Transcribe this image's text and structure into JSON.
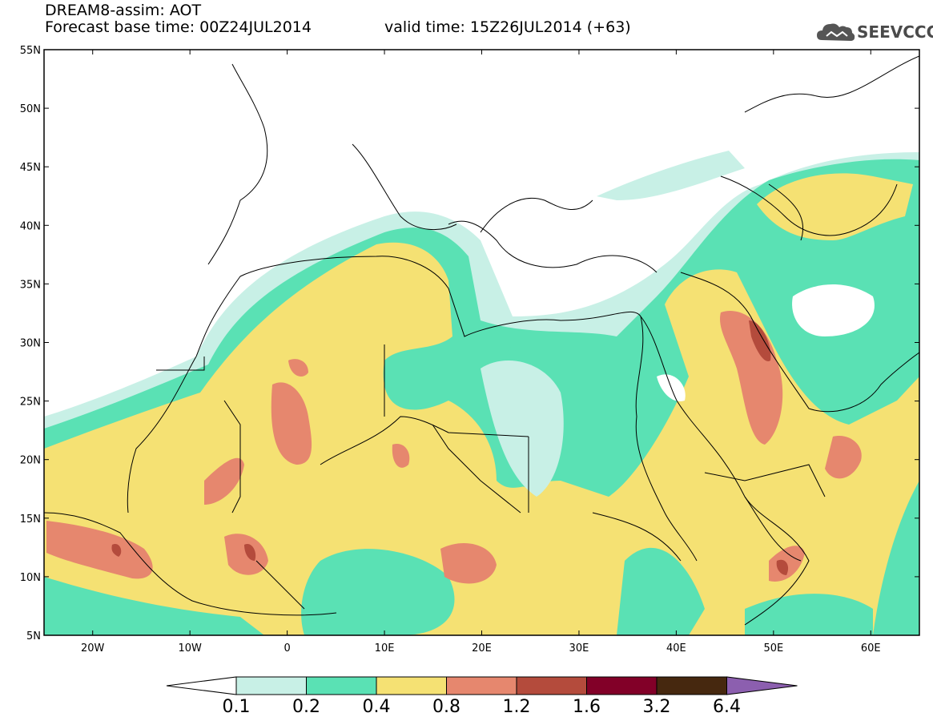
{
  "header": {
    "title": "DREAM8-assim: AOT",
    "forecast": "Forecast base time: 00Z24JUL2014",
    "valid": "valid time: 15Z26JUL2014 (+63)",
    "logo_text": "SEEVCCC"
  },
  "map": {
    "lat_labels": [
      "55N",
      "50N",
      "45N",
      "40N",
      "35N",
      "30N",
      "25N",
      "20N",
      "15N",
      "10N",
      "5N"
    ],
    "lon_labels": [
      "20W",
      "10W",
      "0",
      "10E",
      "20E",
      "30E",
      "40E",
      "50E",
      "60E"
    ],
    "lon_range": [
      -25,
      65
    ],
    "lat_range": [
      5,
      55
    ]
  },
  "colorbar": {
    "levels": [
      "0.1",
      "0.2",
      "0.4",
      "0.8",
      "1.2",
      "1.6",
      "3.2",
      "6.4"
    ],
    "colors": [
      "#ffffff",
      "#c8f0e6",
      "#5ae1b4",
      "#f5e173",
      "#e6876e",
      "#b44b3c",
      "#820028",
      "#46280f",
      "#8c5faf"
    ]
  }
}
